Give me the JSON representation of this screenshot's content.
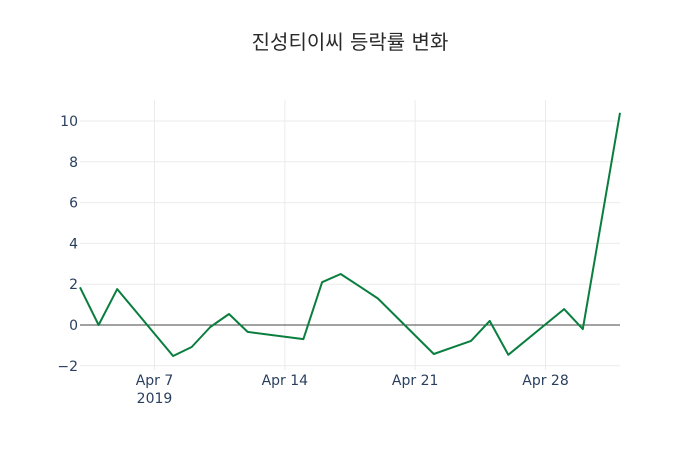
{
  "chart_data": {
    "type": "line",
    "title": "진성티이씨 등락률 변화",
    "xlabel": "",
    "ylabel": "",
    "x_ticks": [
      "Apr 7",
      "Apr 14",
      "Apr 21",
      "Apr 28"
    ],
    "x_tick_dates": [
      "2019-04-07",
      "2019-04-14",
      "2019-04-21",
      "2019-04-28"
    ],
    "x_year_label": "2019",
    "y_ticks": [
      -2,
      0,
      2,
      4,
      6,
      8,
      10
    ],
    "y_tick_labels": [
      "−2",
      "0",
      "2",
      "4",
      "6",
      "8",
      "10"
    ],
    "xlim": [
      "2019-04-03",
      "2019-05-02"
    ],
    "ylim": [
      -2.1,
      10.6
    ],
    "grid": true,
    "zeroline": true,
    "line_color": "#0a7e3e",
    "series": [
      {
        "name": "등락률",
        "x": [
          "2019-04-03",
          "2019-04-04",
          "2019-04-05",
          "2019-04-08",
          "2019-04-09",
          "2019-04-10",
          "2019-04-11",
          "2019-04-12",
          "2019-04-15",
          "2019-04-16",
          "2019-04-17",
          "2019-04-18",
          "2019-04-19",
          "2019-04-22",
          "2019-04-23",
          "2019-04-24",
          "2019-04-25",
          "2019-04-26",
          "2019-04-29",
          "2019-04-30",
          "2019-05-02"
        ],
        "values": [
          1.85,
          0.0,
          1.76,
          -1.52,
          -1.08,
          -0.1,
          0.54,
          -0.34,
          -0.69,
          2.1,
          2.5,
          1.9,
          1.3,
          -1.42,
          -1.1,
          -0.78,
          0.2,
          -1.46,
          0.78,
          -0.2,
          10.4
        ]
      }
    ]
  }
}
